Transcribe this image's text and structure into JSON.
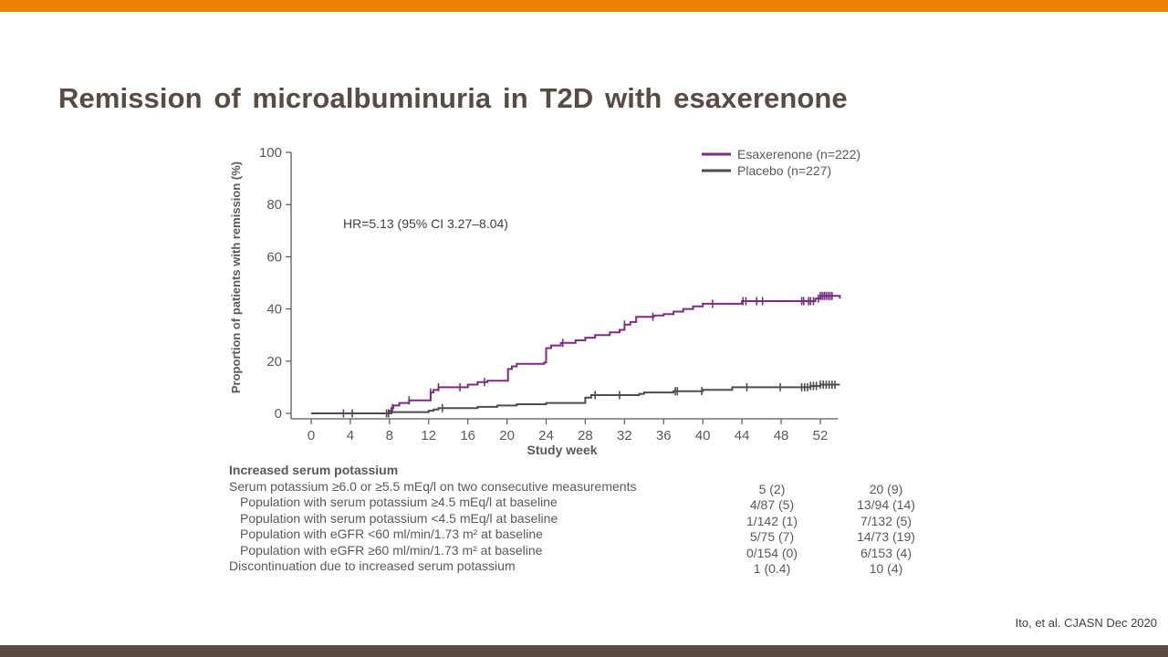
{
  "slide": {
    "title": "Remission of microalbuminuria in T2D with esaxerenone",
    "citation": "Ito, et al. CJASN  Dec 2020",
    "colors": {
      "top_bar": "#ee8205",
      "bottom_bar": "#594a42",
      "title": "#594a42"
    }
  },
  "chart_data": {
    "type": "line",
    "subtype": "kaplan-meier-step",
    "title": "",
    "xlabel": "Study week",
    "ylabel": "Proportion of patients with remission (%)",
    "xlim": [
      0,
      54
    ],
    "ylim": [
      0,
      100
    ],
    "x_ticks": [
      "0",
      "4",
      "8",
      "12",
      "16",
      "20",
      "24",
      "28",
      "32",
      "36",
      "40",
      "44",
      "48",
      "52"
    ],
    "y_ticks": [
      "0",
      "20",
      "40",
      "60",
      "80",
      "100"
    ],
    "grid": false,
    "legend_position": "top-right",
    "annotation": "HR=5.13 (95% CI 3.27–8.04)",
    "series": [
      {
        "name": "Esaxerenone (n=222)",
        "color": "#7b2d7f",
        "steps": [
          [
            0,
            0
          ],
          [
            7.6,
            0
          ],
          [
            8.0,
            1
          ],
          [
            8.2,
            2
          ],
          [
            8.4,
            3
          ],
          [
            9.0,
            4
          ],
          [
            10.0,
            5
          ],
          [
            12.0,
            5
          ],
          [
            12.2,
            8
          ],
          [
            12.5,
            9
          ],
          [
            13.0,
            10
          ],
          [
            15.0,
            10
          ],
          [
            16.0,
            11
          ],
          [
            17.0,
            12
          ],
          [
            18.0,
            12.5
          ],
          [
            20.0,
            12.5
          ],
          [
            20.1,
            17
          ],
          [
            20.5,
            18
          ],
          [
            21.0,
            19
          ],
          [
            23.8,
            19.5
          ],
          [
            24.0,
            25
          ],
          [
            24.5,
            26
          ],
          [
            25.5,
            27
          ],
          [
            27.0,
            28
          ],
          [
            28.0,
            29
          ],
          [
            29.0,
            30
          ],
          [
            30.5,
            31
          ],
          [
            31.5,
            32
          ],
          [
            32.0,
            34
          ],
          [
            32.6,
            35
          ],
          [
            33.2,
            37
          ],
          [
            34.0,
            37
          ],
          [
            35.0,
            37.5
          ],
          [
            36.0,
            38
          ],
          [
            37.0,
            39
          ],
          [
            38.0,
            40
          ],
          [
            39.0,
            41
          ],
          [
            40.0,
            42
          ],
          [
            43.8,
            42
          ],
          [
            44.0,
            43
          ],
          [
            50.0,
            43
          ],
          [
            51.5,
            44
          ],
          [
            52.0,
            45
          ],
          [
            54.0,
            44
          ]
        ],
        "censor_marks": [
          3.3,
          4.2,
          8.3,
          10.0,
          12.2,
          13.0,
          15.2,
          17.7,
          25.7,
          32.0,
          34.9,
          41.0,
          44.1,
          44.4,
          45.5,
          46.1,
          50.1,
          50.3,
          50.8,
          51.0,
          51.3,
          51.8,
          52.0,
          52.2,
          52.4,
          52.6,
          52.8,
          53.0,
          53.2
        ]
      },
      {
        "name": "Placebo (n=227)",
        "color": "#4d4d4d",
        "steps": [
          [
            0,
            0
          ],
          [
            8.0,
            0
          ],
          [
            8.2,
            0.5
          ],
          [
            12.0,
            1
          ],
          [
            12.5,
            1.5
          ],
          [
            13.0,
            2
          ],
          [
            17.0,
            2.5
          ],
          [
            19.0,
            3
          ],
          [
            21.0,
            3.5
          ],
          [
            24.0,
            4
          ],
          [
            27.8,
            4
          ],
          [
            28.0,
            6
          ],
          [
            28.6,
            7
          ],
          [
            33.5,
            7.5
          ],
          [
            34.0,
            8
          ],
          [
            37.0,
            8.5
          ],
          [
            40.0,
            9
          ],
          [
            43.0,
            10
          ],
          [
            49.0,
            10
          ],
          [
            51.0,
            10.5
          ],
          [
            52.0,
            11
          ],
          [
            54.0,
            11
          ]
        ],
        "censor_marks": [
          7.7,
          7.9,
          13.4,
          29.0,
          31.5,
          37.2,
          37.4,
          39.9,
          44.5,
          47.9,
          50.1,
          50.4,
          50.7,
          51.0,
          51.3,
          51.6,
          52.0,
          52.3,
          52.6,
          52.9,
          53.2,
          53.5
        ]
      }
    ]
  },
  "table": {
    "header": "Increased serum potassium",
    "rows": [
      {
        "label": "Serum potassium ≥6.0 or ≥5.5 mEq/l on two consecutive measurements",
        "indent": false,
        "esaxerenone": "5 (2)",
        "placebo": "20 (9)"
      },
      {
        "label": "Population with serum potassium ≥4.5 mEq/l at baseline",
        "indent": true,
        "esaxerenone": "4/87 (5)",
        "placebo": "13/94 (14)"
      },
      {
        "label": "Population with serum potassium <4.5 mEq/l at baseline",
        "indent": true,
        "esaxerenone": "1/142 (1)",
        "placebo": "7/132 (5)"
      },
      {
        "label": "Population with eGFR <60 ml/min/1.73 m² at baseline",
        "indent": true,
        "esaxerenone": "5/75 (7)",
        "placebo": "14/73 (19)"
      },
      {
        "label": "Population with eGFR ≥60 ml/min/1.73 m² at baseline",
        "indent": true,
        "esaxerenone": "0/154 (0)",
        "placebo": "6/153 (4)"
      },
      {
        "label": "Discontinuation due to increased serum potassium",
        "indent": false,
        "esaxerenone": "1 (0.4)",
        "placebo": "10 (4)"
      }
    ]
  }
}
